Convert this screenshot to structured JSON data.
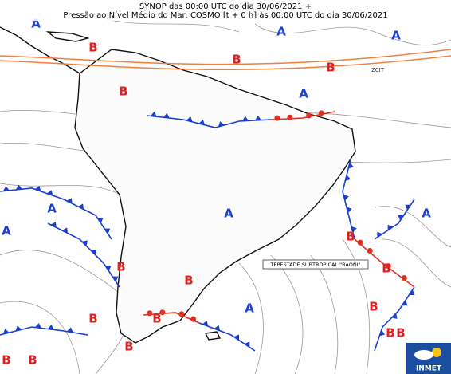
{
  "header": {
    "lines": [
      "SYNOP das 00:00 UTC do dia 30/06/2021 +",
      "Pressão ao Nível Médio do Mar: COSMO [t + 0 h] às 00:00 UTC do dia 30/06/2021"
    ]
  },
  "centers": [
    "A",
    "A",
    "A",
    "A",
    "A",
    "A",
    "A",
    "A",
    "A",
    "B",
    "B",
    "B",
    "B",
    "B",
    "B",
    "B",
    "B",
    "B",
    "B",
    "B",
    "B",
    "B",
    "B",
    "B",
    "B"
  ],
  "annotations": {
    "storm": "TEPESTADE SUBTROPICAL \"RAONI\"",
    "itcz": "ZCIT"
  },
  "logo": "INMET"
}
